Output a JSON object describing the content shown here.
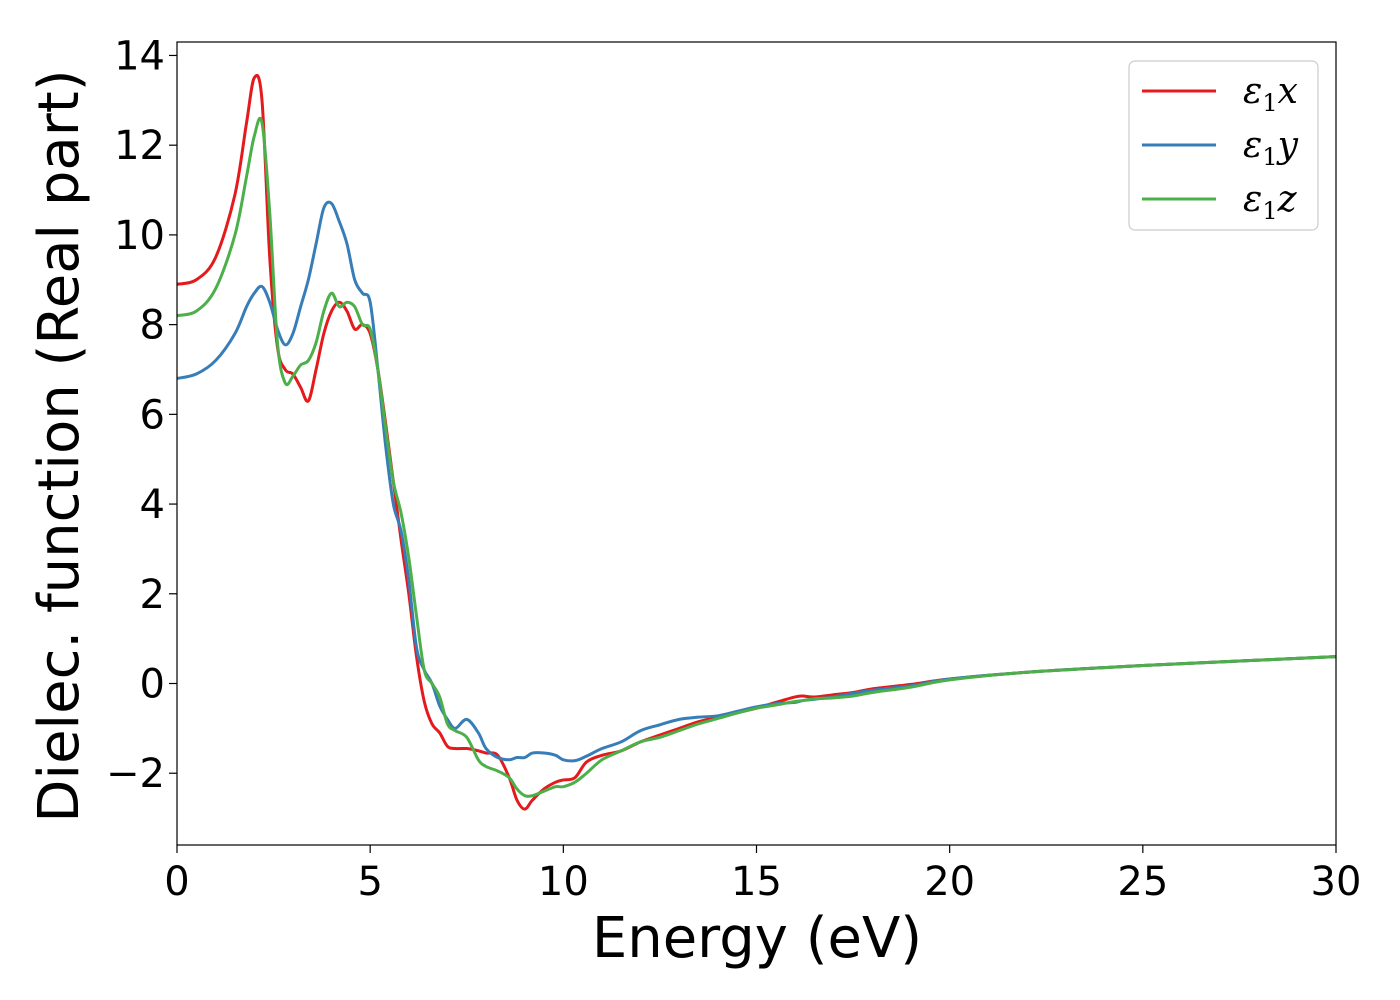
{
  "chart_data": {
    "type": "line",
    "title": "",
    "xlabel": "Energy (eV)",
    "ylabel": "Dielec. function (Real part)",
    "xlim": [
      0,
      30
    ],
    "ylim": [
      -3.6,
      14.3
    ],
    "xticks": [
      0,
      5,
      10,
      15,
      20,
      25,
      30
    ],
    "yticks": [
      -2,
      0,
      2,
      4,
      6,
      8,
      10,
      12,
      14
    ],
    "xtick_labels": [
      "0",
      "5",
      "10",
      "15",
      "20",
      "25",
      "30"
    ],
    "ytick_labels": [
      "−2",
      "0",
      "2",
      "4",
      "6",
      "8",
      "10",
      "12",
      "14"
    ],
    "grid": false,
    "legend_position": "top-right",
    "series": [
      {
        "name": "ε₁x",
        "legend_base": "ε",
        "legend_sub": "1",
        "legend_suffix": "x",
        "color": "#e41a1c",
        "x": [
          0,
          0.5,
          1.0,
          1.5,
          1.8,
          2.0,
          2.2,
          2.4,
          2.6,
          2.8,
          3.0,
          3.2,
          3.4,
          3.6,
          3.8,
          4.0,
          4.2,
          4.4,
          4.6,
          4.8,
          5.0,
          5.2,
          5.4,
          5.6,
          5.8,
          6.0,
          6.2,
          6.4,
          6.6,
          6.8,
          7.0,
          7.2,
          7.5,
          7.8,
          8.0,
          8.3,
          8.6,
          8.8,
          9.0,
          9.2,
          9.5,
          9.8,
          10.0,
          10.3,
          10.6,
          11.0,
          11.5,
          12.0,
          12.5,
          13.0,
          13.5,
          14.0,
          14.5,
          15.0,
          15.5,
          16.0,
          16.2,
          16.5,
          17.0,
          17.5,
          18.0,
          19.0,
          20.0,
          22.0,
          25.0,
          28.0,
          30.0
        ],
        "values": [
          8.9,
          9.0,
          9.5,
          10.9,
          12.5,
          13.5,
          13.0,
          9.5,
          7.5,
          7.0,
          6.9,
          6.6,
          6.3,
          7.0,
          7.8,
          8.3,
          8.5,
          8.3,
          7.9,
          8.0,
          7.8,
          7.0,
          5.8,
          4.5,
          3.2,
          2.0,
          0.6,
          -0.4,
          -0.9,
          -1.1,
          -1.4,
          -1.45,
          -1.45,
          -1.5,
          -1.55,
          -1.6,
          -2.1,
          -2.6,
          -2.8,
          -2.6,
          -2.35,
          -2.2,
          -2.15,
          -2.1,
          -1.75,
          -1.6,
          -1.5,
          -1.3,
          -1.15,
          -1.0,
          -0.85,
          -0.75,
          -0.65,
          -0.55,
          -0.42,
          -0.3,
          -0.28,
          -0.3,
          -0.25,
          -0.2,
          -0.12,
          -0.02,
          0.1,
          0.25,
          0.4,
          0.52,
          0.6
        ]
      },
      {
        "name": "ε₁y",
        "legend_base": "ε",
        "legend_sub": "1",
        "legend_suffix": "y",
        "color": "#377eb8",
        "x": [
          0,
          0.5,
          1.0,
          1.5,
          1.8,
          2.0,
          2.2,
          2.4,
          2.6,
          2.8,
          3.0,
          3.2,
          3.4,
          3.6,
          3.8,
          4.0,
          4.2,
          4.4,
          4.6,
          4.8,
          5.0,
          5.2,
          5.4,
          5.6,
          5.8,
          6.0,
          6.2,
          6.4,
          6.6,
          6.8,
          7.0,
          7.2,
          7.5,
          7.8,
          8.0,
          8.3,
          8.6,
          8.8,
          9.0,
          9.2,
          9.5,
          9.8,
          10.0,
          10.3,
          10.6,
          11.0,
          11.5,
          12.0,
          12.5,
          13.0,
          13.5,
          14.0,
          14.5,
          15.0,
          15.5,
          16.0,
          16.2,
          16.5,
          17.0,
          17.5,
          18.0,
          19.0,
          20.0,
          22.0,
          25.0,
          28.0,
          30.0
        ],
        "values": [
          6.8,
          6.9,
          7.2,
          7.8,
          8.4,
          8.7,
          8.85,
          8.5,
          7.9,
          7.55,
          7.8,
          8.4,
          9.0,
          9.8,
          10.6,
          10.7,
          10.3,
          9.8,
          9.0,
          8.7,
          8.5,
          7.0,
          5.3,
          4.0,
          3.4,
          2.3,
          0.8,
          0.3,
          0.0,
          -0.5,
          -0.8,
          -1.0,
          -0.8,
          -1.1,
          -1.45,
          -1.65,
          -1.7,
          -1.65,
          -1.65,
          -1.55,
          -1.55,
          -1.6,
          -1.7,
          -1.72,
          -1.62,
          -1.45,
          -1.3,
          -1.05,
          -0.92,
          -0.8,
          -0.75,
          -0.72,
          -0.62,
          -0.52,
          -0.45,
          -0.42,
          -0.38,
          -0.35,
          -0.3,
          -0.22,
          -0.15,
          -0.05,
          0.1,
          0.25,
          0.4,
          0.52,
          0.6
        ]
      },
      {
        "name": "ε₁z",
        "legend_base": "ε",
        "legend_sub": "1",
        "legend_suffix": "z",
        "color": "#4daf4a",
        "x": [
          0,
          0.5,
          1.0,
          1.5,
          1.8,
          2.0,
          2.2,
          2.4,
          2.6,
          2.8,
          3.0,
          3.2,
          3.4,
          3.6,
          3.8,
          4.0,
          4.2,
          4.4,
          4.6,
          4.8,
          5.0,
          5.2,
          5.4,
          5.6,
          5.8,
          6.0,
          6.2,
          6.4,
          6.6,
          6.8,
          7.0,
          7.2,
          7.5,
          7.8,
          8.0,
          8.3,
          8.6,
          8.8,
          9.0,
          9.2,
          9.5,
          9.8,
          10.0,
          10.3,
          10.6,
          11.0,
          11.5,
          12.0,
          12.5,
          13.0,
          13.5,
          14.0,
          14.5,
          15.0,
          15.5,
          16.0,
          16.2,
          16.5,
          17.0,
          17.5,
          18.0,
          19.0,
          20.0,
          22.0,
          25.0,
          28.0,
          30.0
        ],
        "values": [
          8.2,
          8.3,
          8.8,
          10.0,
          11.3,
          12.2,
          12.5,
          10.5,
          7.6,
          6.7,
          6.85,
          7.1,
          7.2,
          7.6,
          8.3,
          8.7,
          8.4,
          8.5,
          8.4,
          8.0,
          7.9,
          7.0,
          5.7,
          4.5,
          3.8,
          2.8,
          1.5,
          0.3,
          0.0,
          -0.3,
          -0.9,
          -1.05,
          -1.2,
          -1.7,
          -1.85,
          -1.95,
          -2.1,
          -2.35,
          -2.5,
          -2.5,
          -2.4,
          -2.3,
          -2.3,
          -2.2,
          -2.0,
          -1.7,
          -1.5,
          -1.3,
          -1.2,
          -1.05,
          -0.9,
          -0.78,
          -0.66,
          -0.55,
          -0.48,
          -0.4,
          -0.38,
          -0.34,
          -0.32,
          -0.28,
          -0.2,
          -0.08,
          0.08,
          0.25,
          0.4,
          0.52,
          0.6
        ]
      }
    ]
  }
}
